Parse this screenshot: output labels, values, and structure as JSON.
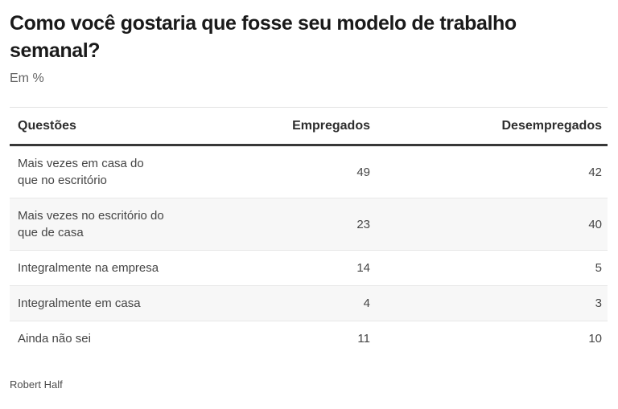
{
  "header": {
    "title": "Como você gostaria que fosse seu modelo de trabalho semanal?",
    "subtitle": "Em %"
  },
  "table": {
    "columns": [
      "Questões",
      "Empregados",
      "Desempregados"
    ],
    "rows": [
      {
        "label": "Mais vezes em casa do\nque no escritório",
        "empregados": "49",
        "desempregados": "42"
      },
      {
        "label": "Mais vezes no escritório do\nque de casa",
        "empregados": "23",
        "desempregados": "40"
      },
      {
        "label": "Integralmente na empresa",
        "empregados": "14",
        "desempregados": "5"
      },
      {
        "label": "Integralmente em casa",
        "empregados": "4",
        "desempregados": "3"
      },
      {
        "label": "Ainda não sei",
        "empregados": "11",
        "desempregados": "10"
      }
    ]
  },
  "source": "Robert Half",
  "colors": {
    "title_text": "#1a1a1a",
    "muted_text": "#646464",
    "body_text": "#454545",
    "header_rule": "#383838",
    "row_divider": "#e7e7e7",
    "zebra_row_bg": "#f7f7f7",
    "background": "#ffffff"
  },
  "chart_data": {
    "type": "table",
    "title": "Como você gostaria que fosse seu modelo de trabalho semanal?",
    "subtitle": "Em %",
    "unit": "%",
    "categories": [
      "Mais vezes em casa do que no escritório",
      "Mais vezes no escritório do que de casa",
      "Integralmente na empresa",
      "Integralmente em casa",
      "Ainda não sei"
    ],
    "series": [
      {
        "name": "Empregados",
        "values": [
          49,
          23,
          14,
          4,
          11
        ]
      },
      {
        "name": "Desempregados",
        "values": [
          42,
          40,
          5,
          3,
          10
        ]
      }
    ],
    "source": "Robert Half",
    "legend_position": "column-headers",
    "grid": false
  }
}
